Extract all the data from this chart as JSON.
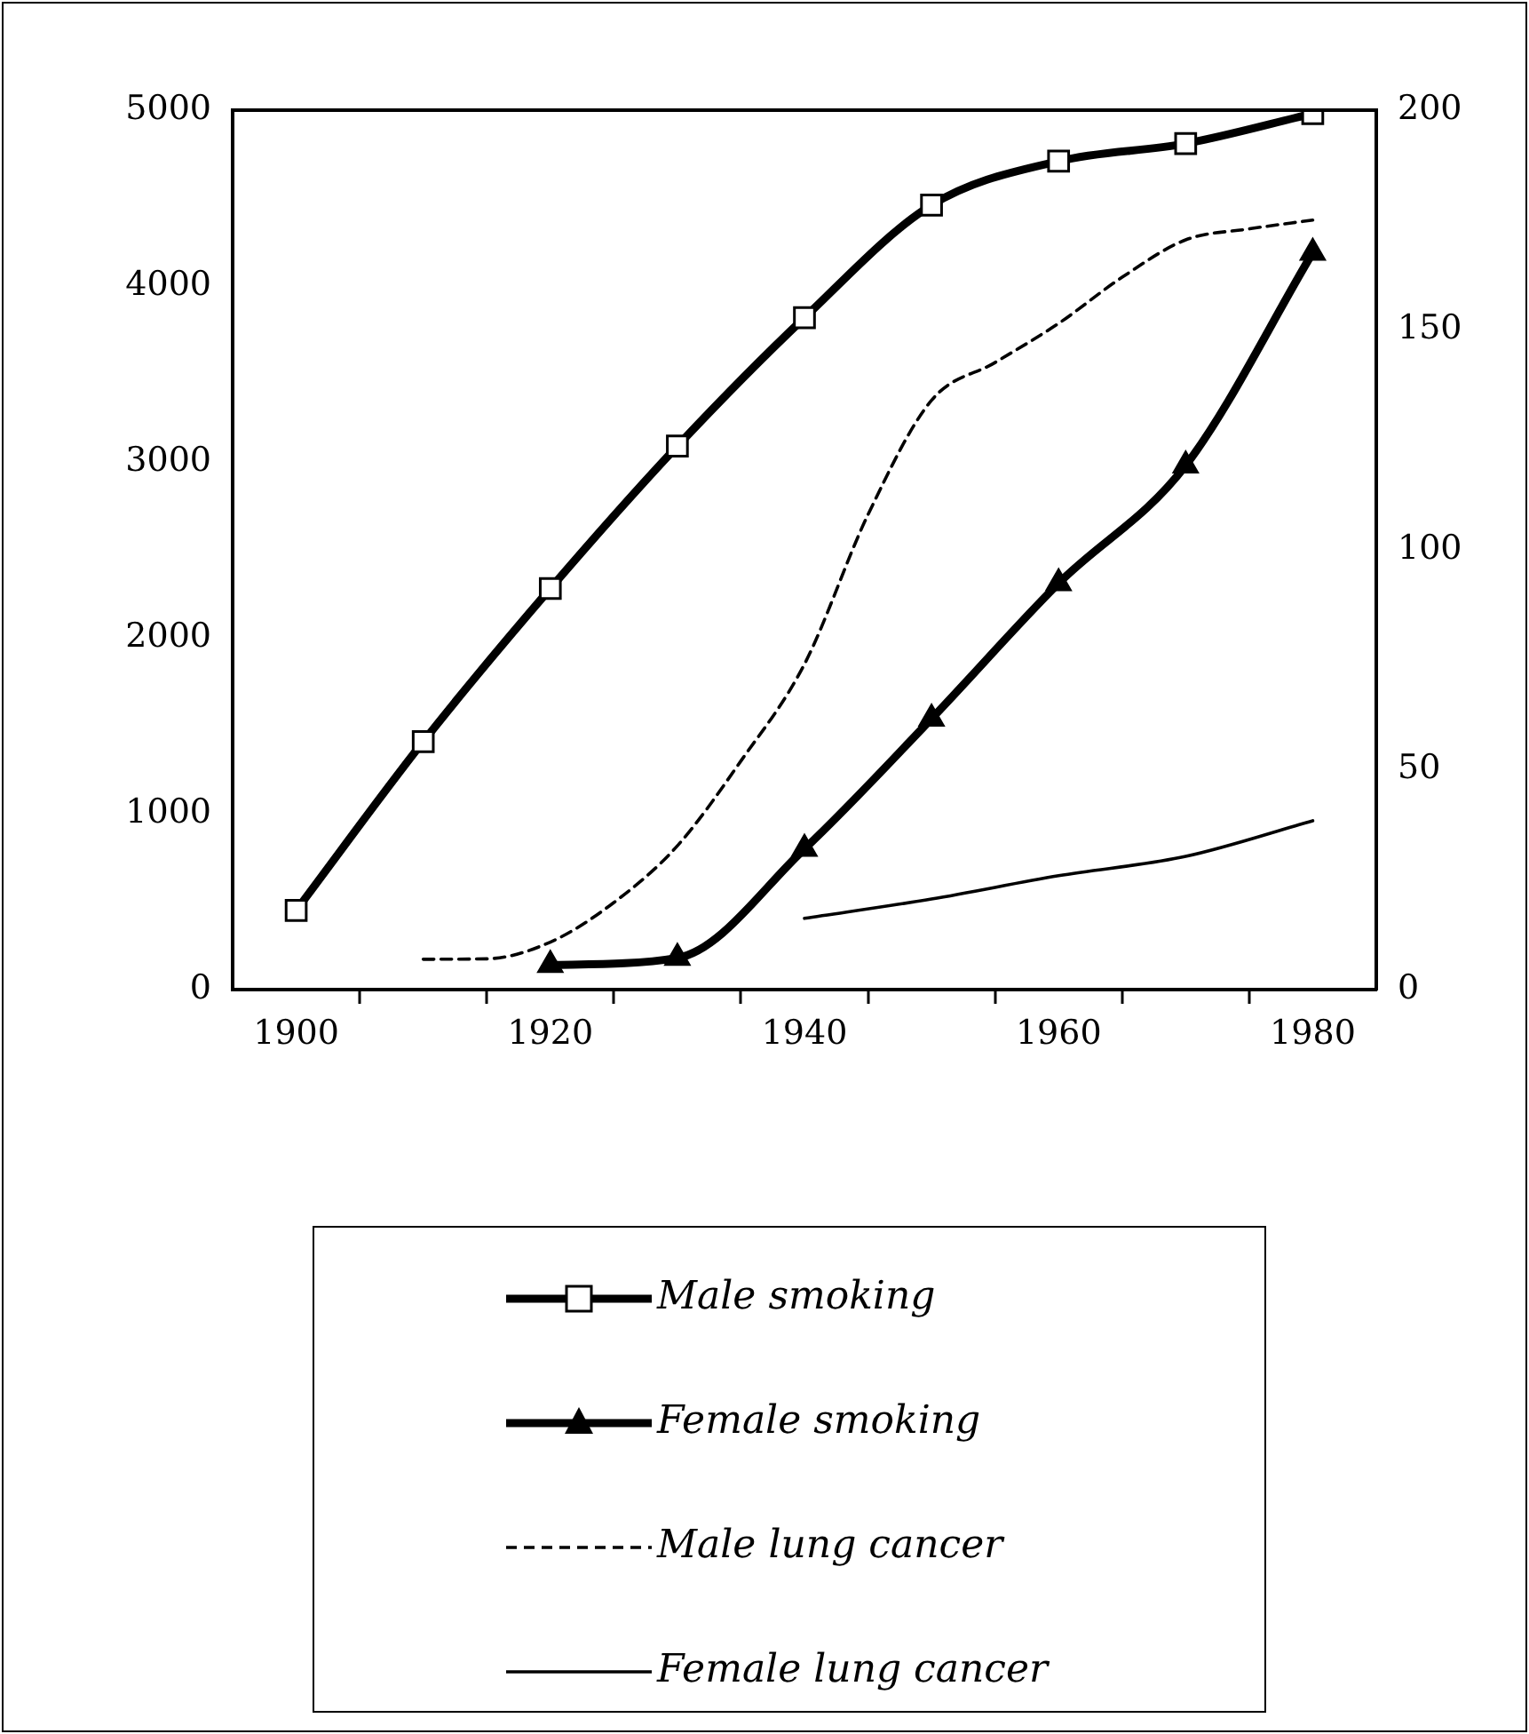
{
  "chart_data": {
    "type": "line",
    "xlim": [
      1895,
      1985
    ],
    "xticks": [
      1900,
      {
        "value": 1905,
        "label": null
      },
      {
        "value": 1915,
        "label": null
      },
      1920,
      {
        "value": 1925,
        "label": null
      },
      {
        "value": 1935,
        "label": null
      },
      1940,
      {
        "value": 1945,
        "label": null
      },
      {
        "value": 1955,
        "label": null
      },
      1960,
      {
        "value": 1965,
        "label": null
      },
      {
        "value": 1975,
        "label": null
      },
      1980
    ],
    "ylim": [
      0,
      5000
    ],
    "yticks": [
      0,
      1000,
      2000,
      3000,
      4000,
      5000
    ],
    "y2lim": [
      0,
      200
    ],
    "y2ticks": [
      0,
      50,
      100,
      150,
      200
    ],
    "grid": false,
    "legend": "bottom",
    "series": [
      {
        "name": "Male smoking",
        "color": "#000000",
        "marker": "square",
        "line_style": "solid",
        "x": [
          1900,
          1910,
          1920,
          1930,
          1940,
          1950,
          1960,
          1970,
          1980
        ],
        "values": [
          450,
          1410,
          2280,
          3090,
          3820,
          4460,
          4710,
          4810,
          4980
        ]
      },
      {
        "name": "Female smoking",
        "color": "#000000",
        "marker": "triangle",
        "line_style": "solid",
        "x": [
          1920,
          1930,
          1940,
          1950,
          1960,
          1970,
          1980
        ],
        "values": [
          140,
          180,
          800,
          1540,
          2310,
          2980,
          4190
        ]
      },
      {
        "name": "Male lung cancer",
        "color": "#000000",
        "marker": "none",
        "line_style": "dashed",
        "axis": "y2",
        "x": [
          1910,
          1915,
          1920,
          1925,
          1930,
          1935,
          1940,
          1945,
          1950,
          1955,
          1960,
          1965,
          1970,
          1975,
          1980
        ],
        "values": [
          6.9,
          7,
          10.8,
          19.8,
          32.7,
          52,
          74,
          108,
          134,
          142.6,
          151.5,
          162,
          170.5,
          173,
          175
        ]
      },
      {
        "name": "Female lung cancer",
        "color": "#000000",
        "marker": "none",
        "line_style": "solid",
        "axis": "y2",
        "x": [
          1940,
          1950,
          1960,
          1970,
          1980
        ],
        "values": [
          16.2,
          20.6,
          25.9,
          30.3,
          38.4
        ]
      }
    ]
  }
}
